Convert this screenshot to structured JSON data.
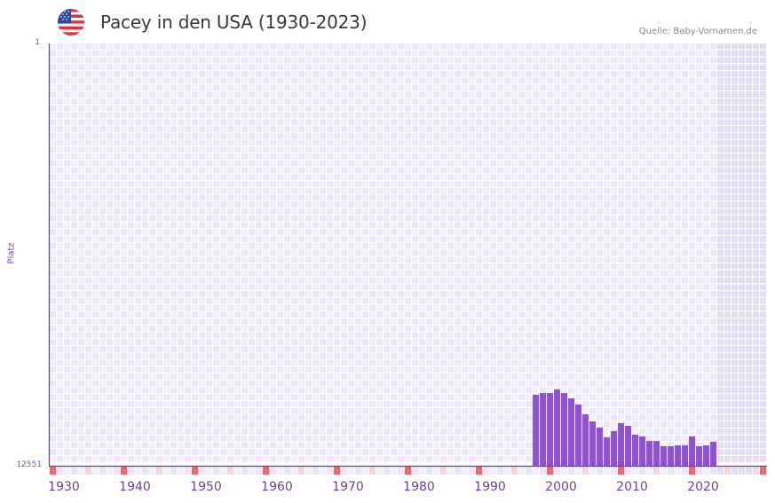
{
  "header": {
    "title": "Pacey in den USA (1930-2023)",
    "source": "Quelle: Baby-Vornamen.de",
    "flag_icon": "us-flag-icon"
  },
  "colors": {
    "bar": "#8b55c6",
    "axis": "#6a3a9e",
    "grid_light": "#f3f0fb",
    "grid_dark": "#ece7f8",
    "future_shade": "#e3dfee",
    "decade_marker": "#e07078",
    "half_decade_marker": "#f4d8e0",
    "label": "#7b52ab"
  },
  "chart_data": {
    "type": "bar",
    "title": "Pacey in den USA (1930-2023)",
    "xlabel": "",
    "ylabel": "Platz",
    "y_axis_inverted": true,
    "ylim": [
      1,
      12551
    ],
    "y_tick_labels": [
      "1",
      "12551"
    ],
    "x_range": [
      1930,
      2030
    ],
    "x_tick_labels": [
      "1930",
      "1940",
      "1950",
      "1960",
      "1970",
      "1980",
      "1990",
      "2000",
      "2010",
      "2020"
    ],
    "grid": true,
    "future_shaded_from": 2024,
    "legend": null,
    "categories": [
      1998,
      1999,
      2000,
      2001,
      2002,
      2003,
      2004,
      2005,
      2006,
      2007,
      2008,
      2009,
      2010,
      2011,
      2012,
      2013,
      2014,
      2015,
      2016,
      2017,
      2018,
      2019,
      2020,
      2021,
      2022,
      2023
    ],
    "series": [
      {
        "name": "Platz",
        "values": [
          10442,
          10390,
          10390,
          10284,
          10390,
          10547,
          10732,
          11022,
          11233,
          11418,
          11708,
          11523,
          11286,
          11365,
          11629,
          11682,
          11814,
          11814,
          11972,
          11972,
          11946,
          11946,
          11682,
          11972,
          11946,
          11840
        ]
      }
    ]
  }
}
